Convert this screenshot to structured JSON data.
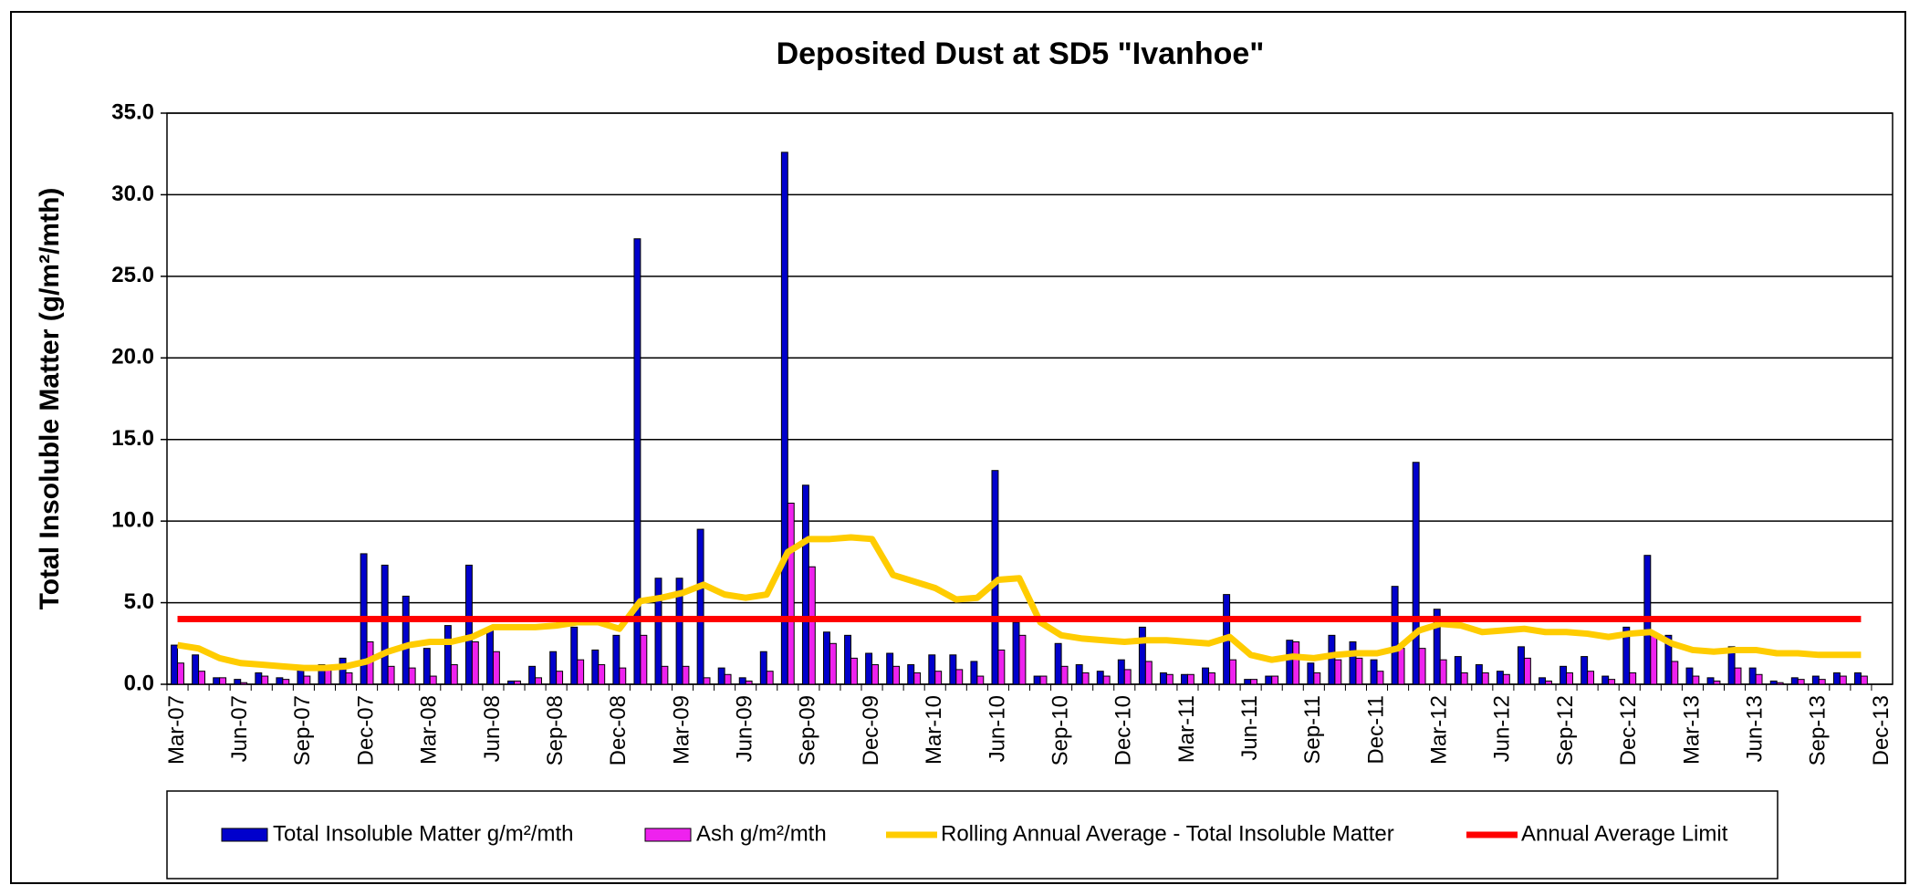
{
  "chart_data": {
    "type": "bar",
    "title": "Deposited Dust at SD5 \"Ivanhoe\"",
    "y_label": "Total Insoluble Matter  (g/m²/mth)",
    "categories": [
      "Mar-07",
      null,
      null,
      "Jun-07",
      null,
      null,
      "Sep-07",
      null,
      null,
      "Dec-07",
      null,
      null,
      "Mar-08",
      null,
      null,
      "Jun-08",
      null,
      null,
      "Sep-08",
      null,
      null,
      "Dec-08",
      null,
      null,
      "Mar-09",
      null,
      null,
      "Jun-09",
      null,
      null,
      "Sep-09",
      null,
      null,
      "Dec-09",
      null,
      null,
      "Mar-10",
      null,
      null,
      "Jun-10",
      null,
      null,
      "Sep-10",
      null,
      null,
      "Dec-10",
      null,
      null,
      "Mar-11",
      null,
      null,
      "Jun-11",
      null,
      null,
      "Sep-11",
      null,
      null,
      "Dec-11",
      null,
      null,
      "Mar-12",
      null,
      null,
      "Jun-12",
      null,
      null,
      "Sep-12",
      null,
      null,
      "Dec-12",
      null,
      null,
      "Mar-13",
      null,
      null,
      "Jun-13",
      null,
      null,
      "Sep-13",
      null,
      null,
      "Dec-13"
    ],
    "series": [
      {
        "name": "Total Insoluble Matter  g/m²/mth",
        "type": "bar",
        "color": "#0000cc",
        "values": [
          2.4,
          1.8,
          0.4,
          0.3,
          0.7,
          0.4,
          0.9,
          1.2,
          1.6,
          8.0,
          7.3,
          5.4,
          2.2,
          3.6,
          7.3,
          3.3,
          0.2,
          1.1,
          2.0,
          3.5,
          2.1,
          3.0,
          27.3,
          6.5,
          6.5,
          9.5,
          1.0,
          0.4,
          2.0,
          32.6,
          12.2,
          3.2,
          3.0,
          1.9,
          1.9,
          1.2,
          1.8,
          1.8,
          1.4,
          13.1,
          3.8,
          0.5,
          2.5,
          1.2,
          0.8,
          1.5,
          3.5,
          0.7,
          0.6,
          1.0,
          5.5,
          0.3,
          0.5,
          2.7,
          1.3,
          3.0,
          2.6,
          1.5,
          6.0,
          13.6,
          4.6,
          1.7,
          1.2,
          0.8,
          2.3,
          0.4,
          1.1,
          1.7,
          0.5,
          3.5,
          7.9,
          3.0,
          1.0,
          0.4,
          2.3,
          1.0,
          0.2,
          0.4,
          0.5,
          0.7,
          0.7,
          null
        ]
      },
      {
        "name": "Ash  g/m²/mth",
        "type": "bar",
        "color": "#ee22ee",
        "values": [
          1.3,
          0.8,
          0.4,
          0.1,
          0.5,
          0.3,
          0.5,
          0.9,
          0.7,
          2.6,
          1.1,
          1.0,
          0.5,
          1.2,
          2.6,
          2.0,
          0.2,
          0.4,
          0.8,
          1.5,
          1.2,
          1.0,
          3.0,
          1.1,
          1.1,
          0.4,
          0.6,
          0.2,
          0.8,
          11.1,
          7.2,
          2.5,
          1.6,
          1.2,
          1.1,
          0.7,
          0.8,
          0.9,
          0.5,
          2.1,
          3.0,
          0.5,
          1.1,
          0.7,
          0.5,
          0.9,
          1.4,
          0.6,
          0.6,
          0.7,
          1.5,
          0.3,
          0.5,
          2.6,
          0.7,
          1.5,
          1.6,
          0.8,
          2.2,
          2.2,
          1.5,
          0.7,
          0.7,
          0.6,
          1.6,
          0.2,
          0.7,
          0.8,
          0.3,
          0.7,
          3.0,
          1.4,
          0.5,
          0.2,
          1.0,
          0.6,
          0.1,
          0.3,
          0.3,
          0.5,
          0.5,
          null
        ]
      },
      {
        "name": "Rolling Annual Average - Total Insoluble Matter",
        "type": "line",
        "color": "#ffcc00",
        "values": [
          2.4,
          2.2,
          1.6,
          1.3,
          1.2,
          1.1,
          1.0,
          1.0,
          1.1,
          1.4,
          2.0,
          2.4,
          2.6,
          2.6,
          2.9,
          3.5,
          3.5,
          3.5,
          3.6,
          3.8,
          3.8,
          3.4,
          5.1,
          5.3,
          5.6,
          6.1,
          5.5,
          5.3,
          5.5,
          8.1,
          8.9,
          8.9,
          9.0,
          8.9,
          6.7,
          6.3,
          5.9,
          5.2,
          5.3,
          6.4,
          6.5,
          3.8,
          3.0,
          2.8,
          2.7,
          2.6,
          2.7,
          2.7,
          2.6,
          2.5,
          2.9,
          1.8,
          1.5,
          1.7,
          1.6,
          1.8,
          1.9,
          1.9,
          2.2,
          3.3,
          3.7,
          3.6,
          3.2,
          3.3,
          3.4,
          3.2,
          3.2,
          3.1,
          2.9,
          3.1,
          3.2,
          2.5,
          2.1,
          2.0,
          2.1,
          2.1,
          1.9,
          1.9,
          1.8,
          1.8,
          1.8,
          null
        ]
      },
      {
        "name": "Annual Average Limit",
        "type": "line",
        "color": "#ff0000",
        "values": [
          4,
          4,
          4,
          4,
          4,
          4,
          4,
          4,
          4,
          4,
          4,
          4,
          4,
          4,
          4,
          4,
          4,
          4,
          4,
          4,
          4,
          4,
          4,
          4,
          4,
          4,
          4,
          4,
          4,
          4,
          4,
          4,
          4,
          4,
          4,
          4,
          4,
          4,
          4,
          4,
          4,
          4,
          4,
          4,
          4,
          4,
          4,
          4,
          4,
          4,
          4,
          4,
          4,
          4,
          4,
          4,
          4,
          4,
          4,
          4,
          4,
          4,
          4,
          4,
          4,
          4,
          4,
          4,
          4,
          4,
          4,
          4,
          4,
          4,
          4,
          4,
          4,
          4,
          4,
          4,
          4,
          null
        ]
      }
    ],
    "ylim": [
      0,
      35
    ],
    "yticks": [
      {
        "value": 0,
        "label": "0.0"
      },
      {
        "value": 5,
        "label": "5.0"
      },
      {
        "value": 10,
        "label": "10.0"
      },
      {
        "value": 15,
        "label": "15.0"
      },
      {
        "value": 20,
        "label": "20.0"
      },
      {
        "value": 25,
        "label": "25.0"
      },
      {
        "value": 30,
        "label": "30.0"
      },
      {
        "value": 35,
        "label": "35.0"
      }
    ],
    "grid": true,
    "legend": "bottom"
  }
}
